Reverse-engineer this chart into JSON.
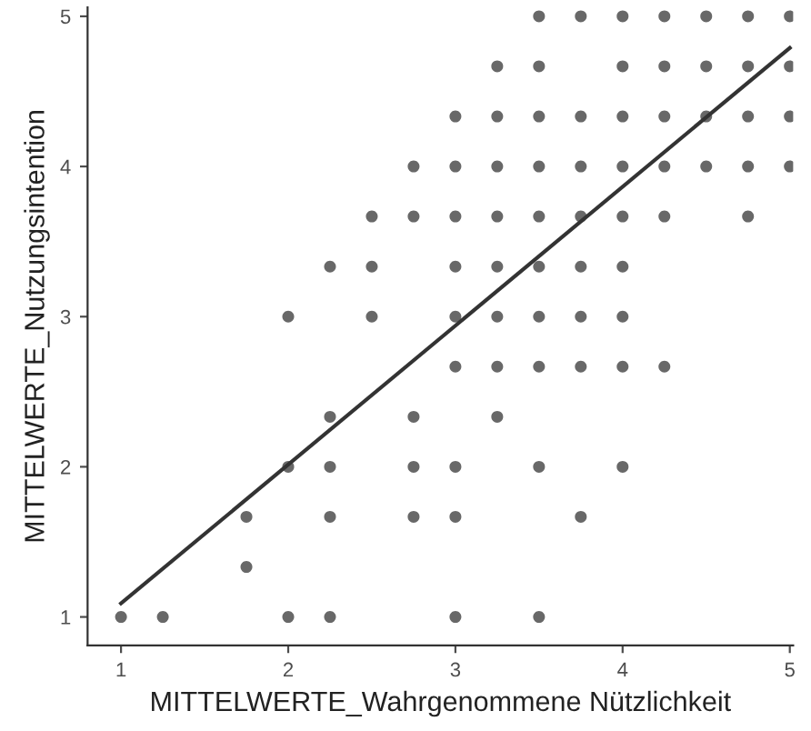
{
  "chart_data": {
    "type": "scatter",
    "xlabel": "MITTELWERTE_Wahrgenommene Nützlichkeit",
    "ylabel": "MITTELWERTE_Nutzungsintention",
    "xlim": [
      0.8,
      5.02
    ],
    "ylim": [
      0.81,
      5.06
    ],
    "xticks": [
      1,
      2,
      3,
      4,
      5
    ],
    "yticks": [
      1,
      2,
      3,
      4,
      5
    ],
    "grid": false,
    "marker": "circle",
    "series": [
      {
        "color": "#4d4d4d",
        "x": [
          1,
          1.25,
          2,
          2.25,
          3,
          3.5,
          1.75,
          1.75,
          2.25,
          2.75,
          3,
          3.75,
          2,
          2.25,
          2.75,
          3,
          3.5,
          4,
          2.25,
          2.75,
          3.25,
          3,
          3.25,
          3.5,
          3.75,
          4,
          4.25,
          2,
          2.5,
          3,
          3.25,
          3.5,
          3.75,
          4,
          2.25,
          2.5,
          3,
          3.25,
          3.5,
          3.75,
          4,
          2.5,
          2.75,
          3,
          3.25,
          3.5,
          3.75,
          4,
          4.25,
          4.75,
          2.75,
          3,
          3.25,
          3.5,
          3.75,
          4,
          4.25,
          4.5,
          4.75,
          5,
          3,
          3.25,
          3.5,
          3.75,
          4,
          4.25,
          4.5,
          4.75,
          5,
          3.25,
          3.5,
          4,
          4.25,
          4.5,
          4.75,
          5,
          3.5,
          3.75,
          4,
          4.25,
          4.5,
          4.75,
          5
        ],
        "values": [
          1,
          1,
          1,
          1,
          1,
          1,
          1.333,
          1.667,
          1.667,
          1.667,
          1.667,
          1.667,
          2,
          2,
          2,
          2,
          2,
          2,
          2.333,
          2.333,
          2.333,
          2.667,
          2.667,
          2.667,
          2.667,
          2.667,
          2.667,
          3,
          3,
          3,
          3,
          3,
          3,
          3,
          3.333,
          3.333,
          3.333,
          3.333,
          3.333,
          3.333,
          3.333,
          3.667,
          3.667,
          3.667,
          3.667,
          3.667,
          3.667,
          3.667,
          3.667,
          3.667,
          4,
          4,
          4,
          4,
          4,
          4,
          4,
          4,
          4,
          4,
          4.333,
          4.333,
          4.333,
          4.333,
          4.333,
          4.333,
          4.333,
          4.333,
          4.333,
          4.667,
          4.667,
          4.667,
          4.667,
          4.667,
          4.667,
          4.667,
          5,
          5,
          5,
          5,
          5,
          5,
          5
        ]
      },
      {
        "type": "line",
        "color": "#333333",
        "marker": "none",
        "x": [
          1,
          5
        ],
        "values": [
          1.09,
          4.79
        ]
      }
    ]
  }
}
